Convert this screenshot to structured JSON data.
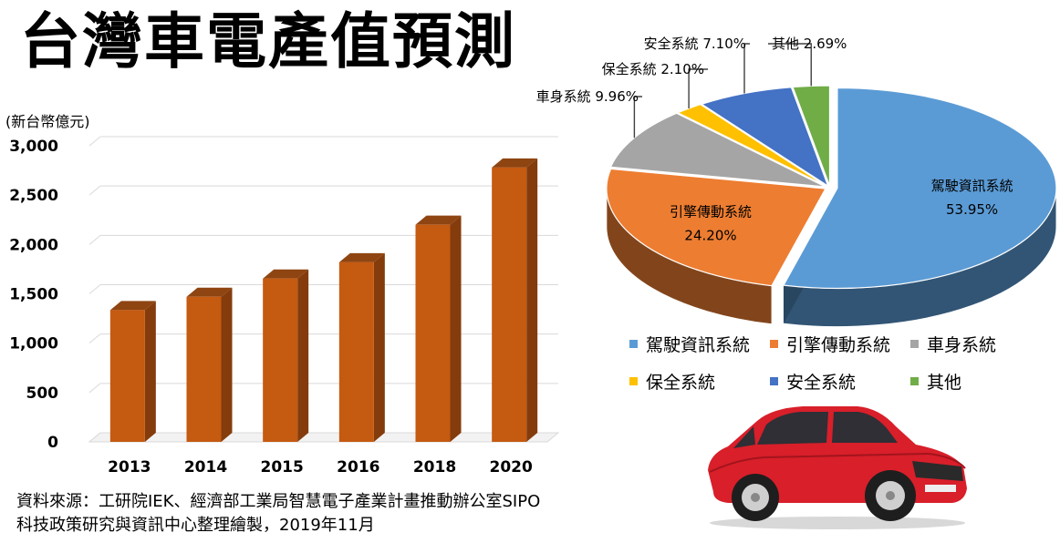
{
  "title": "台灣車電產值預測",
  "source": {
    "line1": "資料來源：工研院IEK、經濟部工業局智慧電子產業計畫推動辦公室SIPO",
    "line2": "科技政策研究與資訊中心整理繪製，2019年11月"
  },
  "chart_data": [
    {
      "type": "bar",
      "unit_label": "(新台幣億元)",
      "categories": [
        "2013",
        "2014",
        "2015",
        "2016",
        "2018",
        "2020"
      ],
      "values": [
        1335,
        1470,
        1655,
        1820,
        2200,
        2780
      ],
      "yticks": [
        "0",
        "500",
        "1,000",
        "1,500",
        "2,000",
        "2,500",
        "3,000"
      ],
      "ylim": [
        0,
        3000
      ],
      "grid": true,
      "bar_color": "#c55a11"
    },
    {
      "type": "pie",
      "slices": [
        {
          "label": "駕駛資訊系統",
          "value": 53.95,
          "value_label": "53.95%",
          "color": "#5b9bd5"
        },
        {
          "label": "引擎傳動系統",
          "value": 24.2,
          "value_label": "24.20%",
          "color": "#ed7d31"
        },
        {
          "label": "車身系統",
          "value": 9.96,
          "value_label": "9.96%",
          "color": "#a5a5a5"
        },
        {
          "label": "保全系統",
          "value": 2.1,
          "value_label": "2.10%",
          "color": "#ffc000"
        },
        {
          "label": "安全系統",
          "value": 7.1,
          "value_label": "7.10%",
          "color": "#4472c4"
        },
        {
          "label": "其他",
          "value": 2.69,
          "value_label": "2.69%",
          "color": "#70ad47"
        }
      ],
      "legend_position": "bottom"
    }
  ]
}
